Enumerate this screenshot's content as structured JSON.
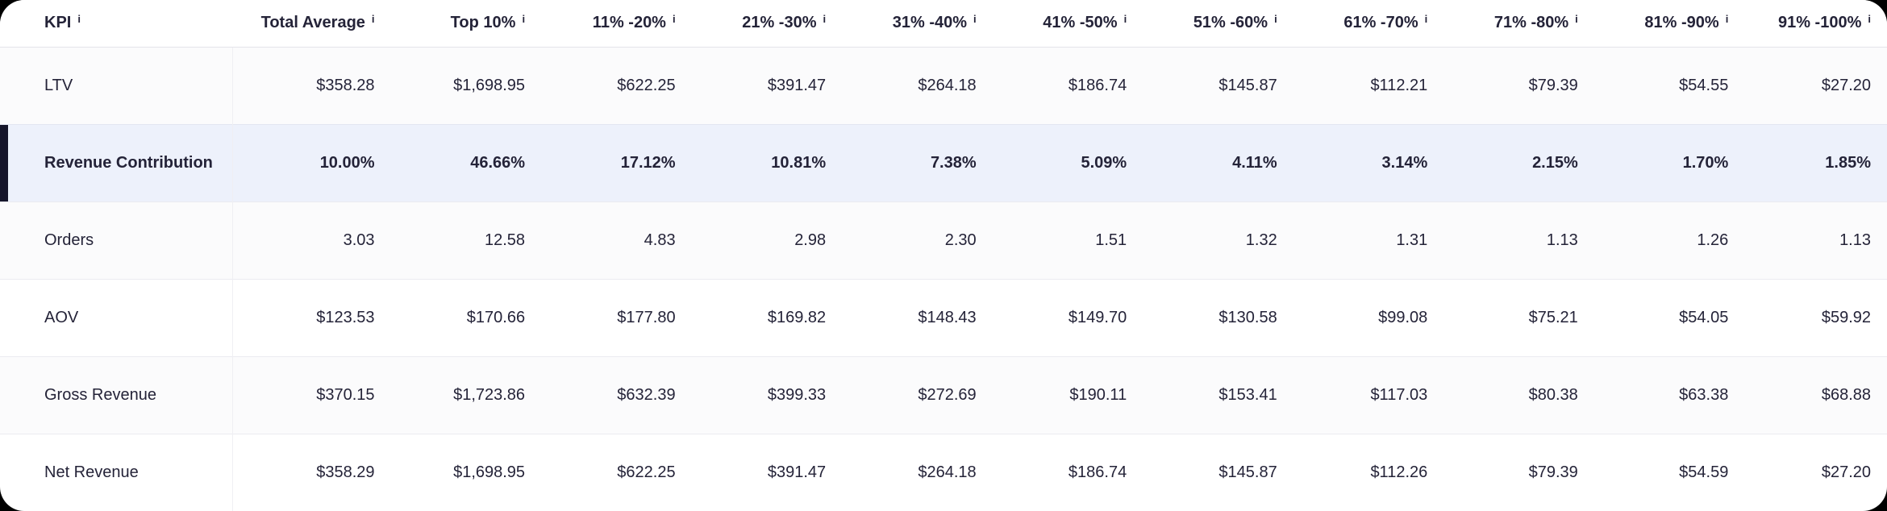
{
  "colors": {
    "page_background": "#000000",
    "card_background": "#ffffff",
    "text": "#242338",
    "highlight_row_background": "#edf1fb",
    "highlight_accent_bar": "#16162b",
    "row_stripe": "#fbfbfc",
    "row_border": "#ebebf1"
  },
  "icons": {
    "info_glyph": "i"
  },
  "table": {
    "columns": [
      {
        "label": "KPI",
        "has_info": true,
        "align": "left"
      },
      {
        "label": "Total Average",
        "has_info": true,
        "align": "right"
      },
      {
        "label": "Top 10%",
        "has_info": true,
        "align": "right"
      },
      {
        "label": "11% -20%",
        "has_info": true,
        "align": "right"
      },
      {
        "label": "21% -30%",
        "has_info": true,
        "align": "right"
      },
      {
        "label": "31% -40%",
        "has_info": true,
        "align": "right"
      },
      {
        "label": "41% -50%",
        "has_info": true,
        "align": "right"
      },
      {
        "label": "51% -60%",
        "has_info": true,
        "align": "right"
      },
      {
        "label": "61% -70%",
        "has_info": true,
        "align": "right"
      },
      {
        "label": "71% -80%",
        "has_info": true,
        "align": "right"
      },
      {
        "label": "81% -90%",
        "has_info": true,
        "align": "right"
      },
      {
        "label": "91% -100%",
        "has_info": true,
        "align": "right"
      }
    ],
    "rows": [
      {
        "kpi": "LTV",
        "highlighted": false,
        "values": [
          "$358.28",
          "$1,698.95",
          "$622.25",
          "$391.47",
          "$264.18",
          "$186.74",
          "$145.87",
          "$112.21",
          "$79.39",
          "$54.55",
          "$27.20"
        ]
      },
      {
        "kpi": "Revenue Contribution",
        "highlighted": true,
        "values": [
          "10.00%",
          "46.66%",
          "17.12%",
          "10.81%",
          "7.38%",
          "5.09%",
          "4.11%",
          "3.14%",
          "2.15%",
          "1.70%",
          "1.85%"
        ]
      },
      {
        "kpi": "Orders",
        "highlighted": false,
        "values": [
          "3.03",
          "12.58",
          "4.83",
          "2.98",
          "2.30",
          "1.51",
          "1.32",
          "1.31",
          "1.13",
          "1.26",
          "1.13"
        ]
      },
      {
        "kpi": "AOV",
        "highlighted": false,
        "values": [
          "$123.53",
          "$170.66",
          "$177.80",
          "$169.82",
          "$148.43",
          "$149.70",
          "$130.58",
          "$99.08",
          "$75.21",
          "$54.05",
          "$59.92"
        ]
      },
      {
        "kpi": "Gross Revenue",
        "highlighted": false,
        "values": [
          "$370.15",
          "$1,723.86",
          "$632.39",
          "$399.33",
          "$272.69",
          "$190.11",
          "$153.41",
          "$117.03",
          "$80.38",
          "$63.38",
          "$68.88"
        ]
      },
      {
        "kpi": "Net Revenue",
        "highlighted": false,
        "values": [
          "$358.29",
          "$1,698.95",
          "$622.25",
          "$391.47",
          "$264.18",
          "$186.74",
          "$145.87",
          "$112.26",
          "$79.39",
          "$54.59",
          "$27.20"
        ]
      }
    ]
  }
}
